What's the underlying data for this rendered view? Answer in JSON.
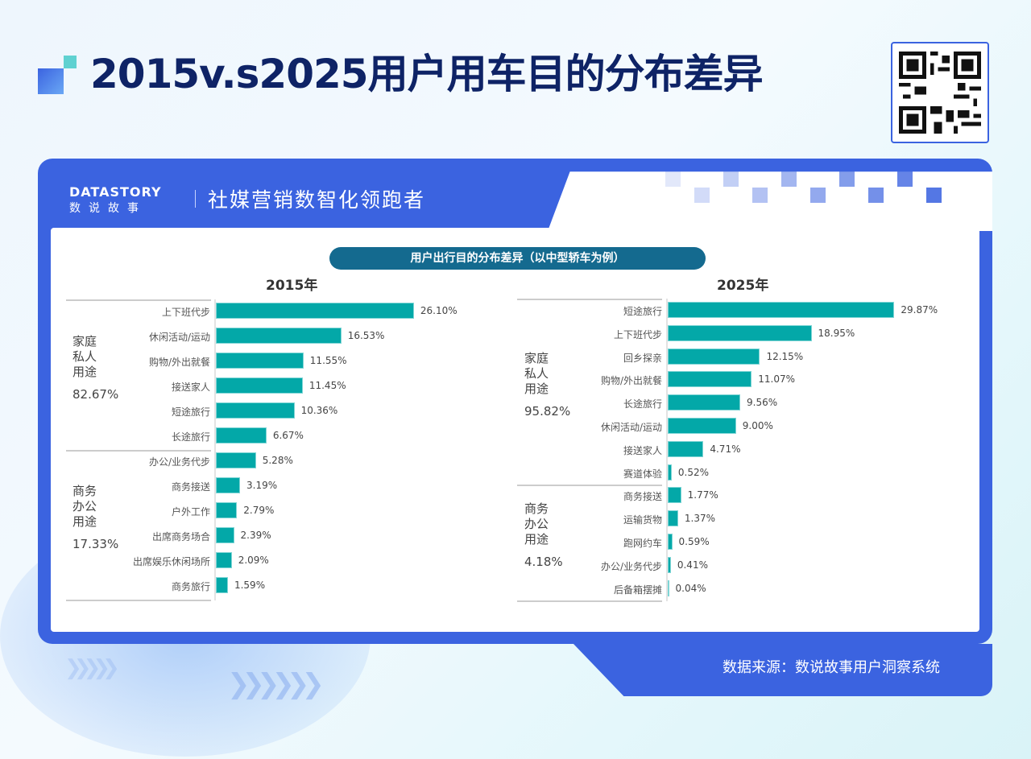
{
  "title": "2015v.s2025用户用车目的分布差异",
  "brand": {
    "en": "DATASTORY",
    "cn": "数说故事",
    "slogan": "社媒营销数智化领跑者"
  },
  "chart_title": "用户出行目的分布差异（以中型轿车为例）",
  "source": "数据来源：数说故事用户洞察系统",
  "colors": {
    "bar": "#03a8a8",
    "primary": "#3b63e0",
    "title": "#0e2366"
  },
  "chart_data": [
    {
      "type": "bar",
      "title": "2015年",
      "groups": [
        {
          "name": "家庭私人用途",
          "lines": [
            "家庭",
            "私人",
            "用途"
          ],
          "total": "82.67%",
          "categories": [
            "上下班代步",
            "休闲活动/运动",
            "购物/外出就餐",
            "接送家人",
            "短途旅行",
            "长途旅行"
          ],
          "values": [
            26.1,
            16.53,
            11.55,
            11.45,
            10.36,
            6.67
          ]
        },
        {
          "name": "商务办公用途",
          "lines": [
            "商务",
            "办公",
            "用途"
          ],
          "total": "17.33%",
          "categories": [
            "办公/业务代步",
            "商务接送",
            "户外工作",
            "出席商务场合",
            "出席娱乐休闲场所",
            "商务旅行"
          ],
          "values": [
            5.28,
            3.19,
            2.79,
            2.39,
            2.09,
            1.59
          ]
        }
      ]
    },
    {
      "type": "bar",
      "title": "2025年",
      "groups": [
        {
          "name": "家庭私人用途",
          "lines": [
            "家庭",
            "私人",
            "用途"
          ],
          "total": "95.82%",
          "categories": [
            "短途旅行",
            "上下班代步",
            "回乡探亲",
            "购物/外出就餐",
            "长途旅行",
            "休闲活动/运动",
            "接送家人",
            "赛道体验"
          ],
          "values": [
            29.87,
            18.95,
            12.15,
            11.07,
            9.56,
            9.0,
            4.71,
            0.52
          ]
        },
        {
          "name": "商务办公用途",
          "lines": [
            "商务",
            "办公",
            "用途"
          ],
          "total": "4.18%",
          "categories": [
            "商务接送",
            "运输货物",
            "跑网约车",
            "办公/业务代步",
            "后备箱摆摊"
          ],
          "values": [
            1.77,
            1.37,
            0.59,
            0.41,
            0.04
          ]
        }
      ]
    }
  ]
}
